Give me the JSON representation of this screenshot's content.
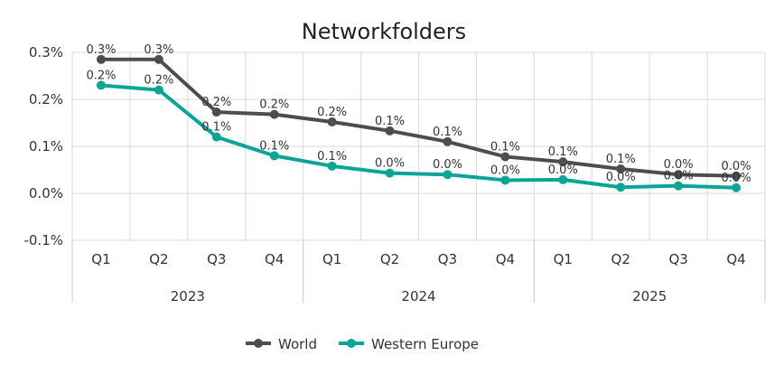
{
  "chart_data": {
    "type": "line",
    "title": "Networkfolders",
    "xlabel": "",
    "ylabel": "",
    "categories": [
      "Q1",
      "Q2",
      "Q3",
      "Q4",
      "Q1",
      "Q2",
      "Q3",
      "Q4",
      "Q1",
      "Q2",
      "Q3",
      "Q4"
    ],
    "years": [
      "2023",
      "2024",
      "2025"
    ],
    "y_ticks": [
      "-0.1%",
      "0.0%",
      "0.1%",
      "0.2%",
      "0.3%"
    ],
    "ylim": [
      -0.1,
      0.3
    ],
    "grid": true,
    "legend_position": "bottom",
    "series": [
      {
        "name": "World",
        "color": "#4d4d4d",
        "values": [
          0.285,
          0.285,
          0.173,
          0.168,
          0.152,
          0.133,
          0.11,
          0.078,
          0.067,
          0.052,
          0.04,
          0.037
        ],
        "labels": [
          "0.3%",
          "0.3%",
          "0.2%",
          "0.2%",
          "0.2%",
          "0.1%",
          "0.1%",
          "0.1%",
          "0.1%",
          "0.1%",
          "0.0%",
          "0.0%"
        ]
      },
      {
        "name": "Western Europe",
        "color": "#0aa596",
        "values": [
          0.23,
          0.22,
          0.12,
          0.08,
          0.058,
          0.043,
          0.04,
          0.028,
          0.029,
          0.013,
          0.016,
          0.012
        ],
        "labels": [
          "0.2%",
          "0.2%",
          "0.1%",
          "0.1%",
          "0.1%",
          "0.0%",
          "0.0%",
          "0.0%",
          "0.0%",
          "0.0%",
          "0.0%",
          "0.0%"
        ]
      }
    ]
  }
}
